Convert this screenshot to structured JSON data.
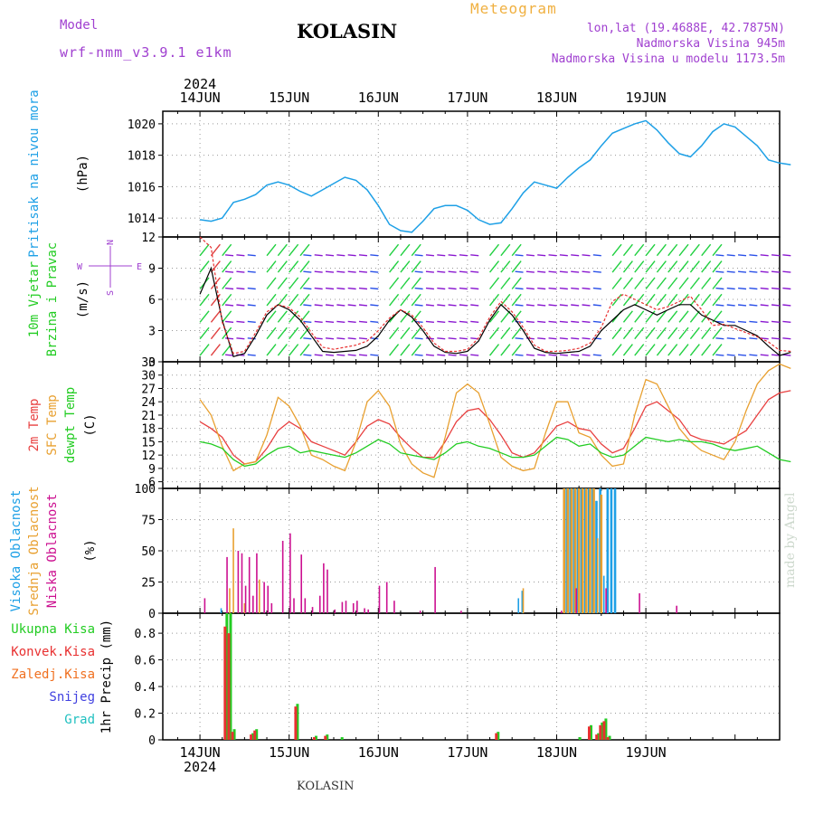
{
  "header": {
    "model_label": "Model",
    "model_name": "wrf-nmm_v3.9.1 e1km",
    "location": "KOLASIN",
    "title": "Meteogram",
    "lonlat": "lon,lat (19.4688E, 42.7875N)",
    "altitude": "Nadmorska Visina 945m",
    "model_altitude": "Nadmorska Visina u modelu 1173.5m"
  },
  "footer": {
    "location": "KOLASIN",
    "credit": "made by Angel"
  },
  "colors": {
    "pressure": "#1ea0e6",
    "wind_speed": "#000000",
    "gust": "#e83030",
    "t2m": "#e84040",
    "sfc": "#e8a030",
    "dewpt": "#22cc22",
    "high_cloud": "#1ea0e6",
    "mid_cloud": "#e8a030",
    "low_cloud": "#cc1090",
    "total_precip": "#22cc22",
    "conv_precip": "#e83030",
    "frozen_precip": "#f07020",
    "snow": "#4040e0",
    "graupel": "#20c0c0"
  },
  "chart_data": [
    {
      "type": "line",
      "name": "pressure",
      "year_label": "2024",
      "date_labels": [
        "14JUN",
        "15JUN",
        "16JUN",
        "17JUN",
        "18JUN",
        "19JUN"
      ],
      "ylabel_main": "Pritisak na nivou mora",
      "ylabel_unit": "(hPa)",
      "ylim": [
        1012.8,
        1020.8
      ],
      "yticks": [
        1014,
        1016,
        1018,
        1020
      ],
      "grid": true,
      "x_hours": [
        0,
        3,
        6,
        9,
        12,
        15,
        18,
        21,
        24,
        27,
        30,
        33,
        36,
        39,
        42,
        45,
        48,
        51,
        54,
        57,
        60,
        63,
        66,
        69,
        72,
        75,
        78,
        81,
        84,
        87,
        90,
        93,
        96,
        99,
        102,
        105,
        108,
        111,
        114,
        117,
        120,
        123,
        126,
        129,
        132,
        135,
        138,
        141,
        144,
        147,
        150,
        153,
        156,
        159
      ],
      "series": [
        {
          "values": [
            1013.9,
            1013.8,
            1014.0,
            1015.0,
            1015.2,
            1015.5,
            1016.1,
            1016.3,
            1016.1,
            1015.7,
            1015.4,
            1015.8,
            1016.2,
            1016.6,
            1016.4,
            1015.8,
            1014.8,
            1013.6,
            1013.2,
            1013.1,
            1013.8,
            1014.6,
            1014.8,
            1014.8,
            1014.5,
            1013.9,
            1013.6,
            1013.7,
            1014.6,
            1015.6,
            1016.3,
            1016.1,
            1015.9,
            1016.6,
            1017.2,
            1017.7,
            1018.6,
            1019.4,
            1019.7,
            1020.0,
            1020.2,
            1019.6,
            1018.8,
            1018.1,
            1017.9,
            1018.6,
            1019.5,
            1020.0,
            1019.8,
            1019.2,
            1018.6,
            1017.7,
            1017.5,
            1017.4
          ]
        }
      ]
    },
    {
      "type": "line",
      "name": "wind",
      "ylabel_main": "10m Vjetar",
      "ylabel_sub": "Brzina i Pravac",
      "ylabel_unit": "(m/s)",
      "compass": {
        "north": "N",
        "east": "E",
        "west": "W",
        "south": "S"
      },
      "ylim": [
        0,
        12
      ],
      "yticks": [
        0,
        3,
        6,
        9,
        12
      ],
      "grid": true,
      "x_hours": [
        0,
        3,
        6,
        9,
        12,
        15,
        18,
        21,
        24,
        27,
        30,
        33,
        36,
        39,
        42,
        45,
        48,
        51,
        54,
        57,
        60,
        63,
        66,
        69,
        72,
        75,
        78,
        81,
        84,
        87,
        90,
        93,
        96,
        99,
        102,
        105,
        108,
        111,
        114,
        117,
        120,
        123,
        126,
        129,
        132,
        135,
        138,
        141,
        144,
        147,
        150,
        153,
        156,
        159
      ],
      "series": [
        {
          "name": "wind_speed",
          "values": [
            6.5,
            9.0,
            4.0,
            0.5,
            0.8,
            2.5,
            4.5,
            5.5,
            5.0,
            4.0,
            2.5,
            1.0,
            0.9,
            1.0,
            1.1,
            1.5,
            2.5,
            4.0,
            5.0,
            4.3,
            3.0,
            1.5,
            0.9,
            0.8,
            1.0,
            2.0,
            4.0,
            5.5,
            4.5,
            3.0,
            1.3,
            0.9,
            0.8,
            0.9,
            1.0,
            1.5,
            3.0,
            4.0,
            5.0,
            5.5,
            5.0,
            4.5,
            5.0,
            5.5,
            5.5,
            4.5,
            4.0,
            3.5,
            3.5,
            3.0,
            2.5,
            1.5,
            0.6,
            0.9
          ]
        },
        {
          "name": "gust",
          "values": [
            12.0,
            11.0,
            3.8,
            0.8,
            1.0,
            2.8,
            4.8,
            5.5,
            5.2,
            4.3,
            2.8,
            1.4,
            1.2,
            1.4,
            1.6,
            2.0,
            3.0,
            4.2,
            5.0,
            4.5,
            3.3,
            1.8,
            1.0,
            1.0,
            1.2,
            2.3,
            4.3,
            5.8,
            4.8,
            3.3,
            1.6,
            1.0,
            1.0,
            1.1,
            1.3,
            1.8,
            3.3,
            5.8,
            6.5,
            6.0,
            5.5,
            5.0,
            5.3,
            5.8,
            6.3,
            5.0,
            3.5,
            3.6,
            3.2,
            2.8,
            2.4,
            1.9,
            1.1,
            1.0
          ]
        }
      ]
    },
    {
      "type": "line",
      "name": "temperature",
      "ylabel_series": [
        "2m Temp",
        "SFC Temp",
        "dewpt Temp"
      ],
      "ylabel_unit": "(C)",
      "ylim": [
        4.5,
        33
      ],
      "yticks": [
        6,
        9,
        12,
        15,
        18,
        21,
        24,
        27,
        30,
        33
      ],
      "grid": true,
      "x_hours": [
        0,
        3,
        6,
        9,
        12,
        15,
        18,
        21,
        24,
        27,
        30,
        33,
        36,
        39,
        42,
        45,
        48,
        51,
        54,
        57,
        60,
        63,
        66,
        69,
        72,
        75,
        78,
        81,
        84,
        87,
        90,
        93,
        96,
        99,
        102,
        105,
        108,
        111,
        114,
        117,
        120,
        123,
        126,
        129,
        132,
        135,
        138,
        141,
        144,
        147,
        150,
        153,
        156,
        159
      ],
      "series": [
        {
          "name": "2m Temp",
          "values": [
            19.5,
            18.0,
            16.0,
            12.0,
            10.0,
            10.5,
            13.5,
            17.5,
            19.5,
            18.0,
            15.0,
            14.0,
            13.0,
            12.0,
            15.0,
            18.5,
            20.0,
            19.0,
            16.0,
            13.5,
            11.5,
            11.5,
            15.0,
            19.5,
            22.0,
            22.5,
            20.0,
            16.5,
            12.5,
            11.5,
            12.5,
            15.5,
            18.5,
            19.5,
            18.0,
            17.5,
            14.5,
            12.5,
            13.5,
            18.0,
            23.0,
            24.0,
            22.0,
            20.0,
            16.5,
            15.5,
            15.0,
            14.5,
            16.0,
            17.5,
            21.0,
            24.5,
            26.0,
            26.5
          ]
        },
        {
          "name": "SFC Temp",
          "values": [
            24.5,
            21.0,
            14.0,
            8.5,
            10.0,
            10.5,
            16.5,
            25.0,
            23.0,
            18.5,
            12.0,
            11.0,
            9.5,
            8.5,
            15.0,
            24.0,
            26.5,
            23.0,
            14.5,
            10.0,
            8.0,
            7.0,
            16.0,
            26.0,
            28.0,
            26.0,
            19.0,
            11.5,
            9.5,
            8.5,
            9.0,
            17.0,
            24.0,
            24.0,
            17.0,
            16.0,
            12.0,
            9.5,
            10.0,
            21.0,
            29.0,
            28.0,
            23.0,
            18.0,
            15.0,
            13.0,
            12.0,
            11.0,
            15.0,
            22.0,
            28.0,
            31.0,
            32.5,
            31.5
          ]
        },
        {
          "name": "dewpt Temp",
          "values": [
            15.0,
            14.5,
            13.5,
            11.0,
            9.5,
            10.0,
            12.0,
            13.5,
            14.0,
            12.5,
            13.0,
            12.5,
            12.0,
            11.5,
            12.5,
            14.0,
            15.5,
            14.5,
            12.5,
            12.0,
            11.5,
            11.0,
            12.5,
            14.5,
            15.0,
            14.0,
            13.5,
            12.5,
            11.5,
            11.5,
            12.0,
            14.0,
            16.0,
            15.5,
            14.0,
            14.5,
            12.5,
            11.5,
            12.0,
            14.0,
            16.0,
            15.5,
            15.0,
            15.5,
            15.0,
            15.0,
            14.5,
            13.5,
            13.0,
            13.5,
            14.0,
            12.5,
            11.0,
            10.5
          ]
        }
      ]
    },
    {
      "type": "bar",
      "name": "cloud_cover",
      "ylabel_series": [
        "Visoka Oblacnost",
        "Srednja Oblacnost",
        "Niska Oblacnost"
      ],
      "ylabel_unit": "(%)",
      "ylim": [
        0,
        100
      ],
      "yticks": [
        0,
        25,
        50,
        75,
        100
      ],
      "grid": true,
      "series": [
        {
          "name": "Visoka Oblacnost",
          "bars": [
            [
              6,
              4
            ],
            [
              86,
              12
            ],
            [
              87,
              18
            ],
            [
              99,
              100
            ],
            [
              100,
              100
            ],
            [
              101,
              100
            ],
            [
              102,
              100
            ],
            [
              103,
              100
            ],
            [
              104,
              100
            ],
            [
              105,
              100
            ],
            [
              106,
              100
            ],
            [
              107,
              90
            ],
            [
              108,
              100
            ],
            [
              109,
              30
            ],
            [
              110,
              100
            ],
            [
              111,
              100
            ],
            [
              112,
              100
            ]
          ]
        },
        {
          "name": "Srednja Oblacnost",
          "bars": [
            [
              8,
              20
            ],
            [
              9,
              68
            ],
            [
              12,
              8
            ],
            [
              16,
              27
            ],
            [
              87,
              20
            ],
            [
              98,
              100
            ],
            [
              99,
              100
            ],
            [
              100,
              100
            ],
            [
              101,
              100
            ],
            [
              102,
              100
            ],
            [
              103,
              100
            ],
            [
              104,
              100
            ],
            [
              105,
              100
            ],
            [
              106,
              100
            ],
            [
              107,
              60
            ],
            [
              108,
              95
            ]
          ]
        },
        {
          "name": "Niska Oblacnost",
          "bars": [
            [
              1,
              12
            ],
            [
              7,
              45
            ],
            [
              10,
              50
            ],
            [
              11,
              48
            ],
            [
              12,
              22
            ],
            [
              13,
              45
            ],
            [
              14,
              14
            ],
            [
              15,
              48
            ],
            [
              17,
              25
            ],
            [
              18,
              22
            ],
            [
              19,
              8
            ],
            [
              22,
              58
            ],
            [
              24,
              64
            ],
            [
              25,
              12
            ],
            [
              27,
              47
            ],
            [
              28,
              12
            ],
            [
              30,
              5
            ],
            [
              32,
              14
            ],
            [
              33,
              40
            ],
            [
              34,
              35
            ],
            [
              36,
              3
            ],
            [
              38,
              9
            ],
            [
              39,
              10
            ],
            [
              41,
              8
            ],
            [
              42,
              10
            ],
            [
              44,
              4
            ],
            [
              45,
              3
            ],
            [
              48,
              22
            ],
            [
              50,
              25
            ],
            [
              52,
              10
            ],
            [
              59,
              2
            ],
            [
              63,
              37
            ],
            [
              70,
              2
            ],
            [
              97,
              2
            ],
            [
              101,
              20
            ],
            [
              109,
              20
            ],
            [
              118,
              16
            ],
            [
              128,
              6
            ]
          ]
        }
      ]
    },
    {
      "type": "bar",
      "name": "precipitation",
      "legend": [
        "Ukupna Kisa",
        "Konvek.Kisa",
        "Zaledj.Kisa",
        "Snijeg",
        "Grad"
      ],
      "ylabel_main": "1hr Precip",
      "ylabel_unit": "(mm)",
      "ylim": [
        0,
        0.95
      ],
      "yticks": [
        0,
        0.2,
        0.4,
        0.6,
        0.8
      ],
      "grid": true,
      "x_date_labels": [
        "14JUN",
        "15JUN",
        "16JUN",
        "17JUN",
        "18JUN",
        "19JUN"
      ],
      "x_year_label": "2024",
      "series": [
        {
          "name": "Ukupna Kisa",
          "bars": [
            [
              7,
              0.95
            ],
            [
              8,
              0.95
            ],
            [
              9,
              0.08
            ],
            [
              14,
              0.05
            ],
            [
              15,
              0.08
            ],
            [
              26,
              0.27
            ],
            [
              31,
              0.03
            ],
            [
              34,
              0.04
            ],
            [
              38,
              0.02
            ],
            [
              80,
              0.06
            ],
            [
              102,
              0.02
            ],
            [
              105,
              0.11
            ],
            [
              107,
              0.05
            ],
            [
              108,
              0.13
            ],
            [
              109,
              0.16
            ],
            [
              110,
              0.03
            ]
          ]
        },
        {
          "name": "Konvek.Kisa",
          "bars": [
            [
              7,
              0.85
            ],
            [
              8,
              0.8
            ],
            [
              9,
              0.06
            ],
            [
              14,
              0.04
            ],
            [
              15,
              0.07
            ],
            [
              26,
              0.25
            ],
            [
              31,
              0.02
            ],
            [
              34,
              0.03
            ],
            [
              80,
              0.05
            ],
            [
              105,
              0.1
            ],
            [
              107,
              0.04
            ],
            [
              108,
              0.11
            ],
            [
              109,
              0.14
            ],
            [
              110,
              0.02
            ]
          ]
        }
      ]
    }
  ]
}
